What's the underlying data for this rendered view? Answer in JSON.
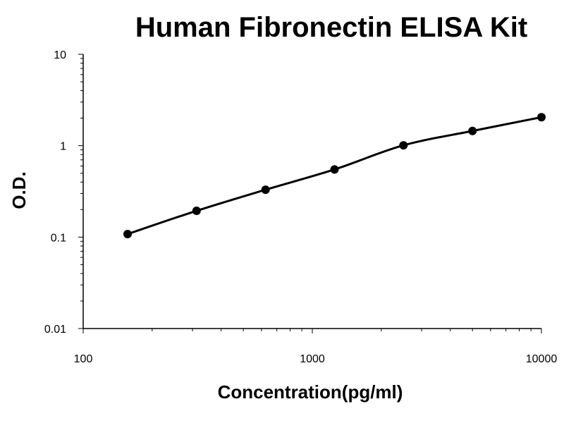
{
  "chart_data": {
    "type": "scatter",
    "title": "Human Fibronectin ELISA Kit",
    "xlabel": "Concentration(pg/ml)",
    "ylabel": "O.D.",
    "x_scale": "log",
    "y_scale": "log",
    "xlim": [
      100,
      10000
    ],
    "ylim": [
      0.01,
      10
    ],
    "grid": false,
    "x_tick_labels": [
      "100",
      "1000",
      "10000"
    ],
    "y_tick_labels": [
      "0.01",
      "0.1",
      "1",
      "10"
    ],
    "series": [
      {
        "x": [
          156.25,
          312.5,
          625,
          1250,
          2500,
          5000,
          10000
        ],
        "y": [
          0.108,
          0.194,
          0.33,
          0.55,
          1.01,
          1.45,
          2.05
        ],
        "fit_line": true
      }
    ]
  }
}
